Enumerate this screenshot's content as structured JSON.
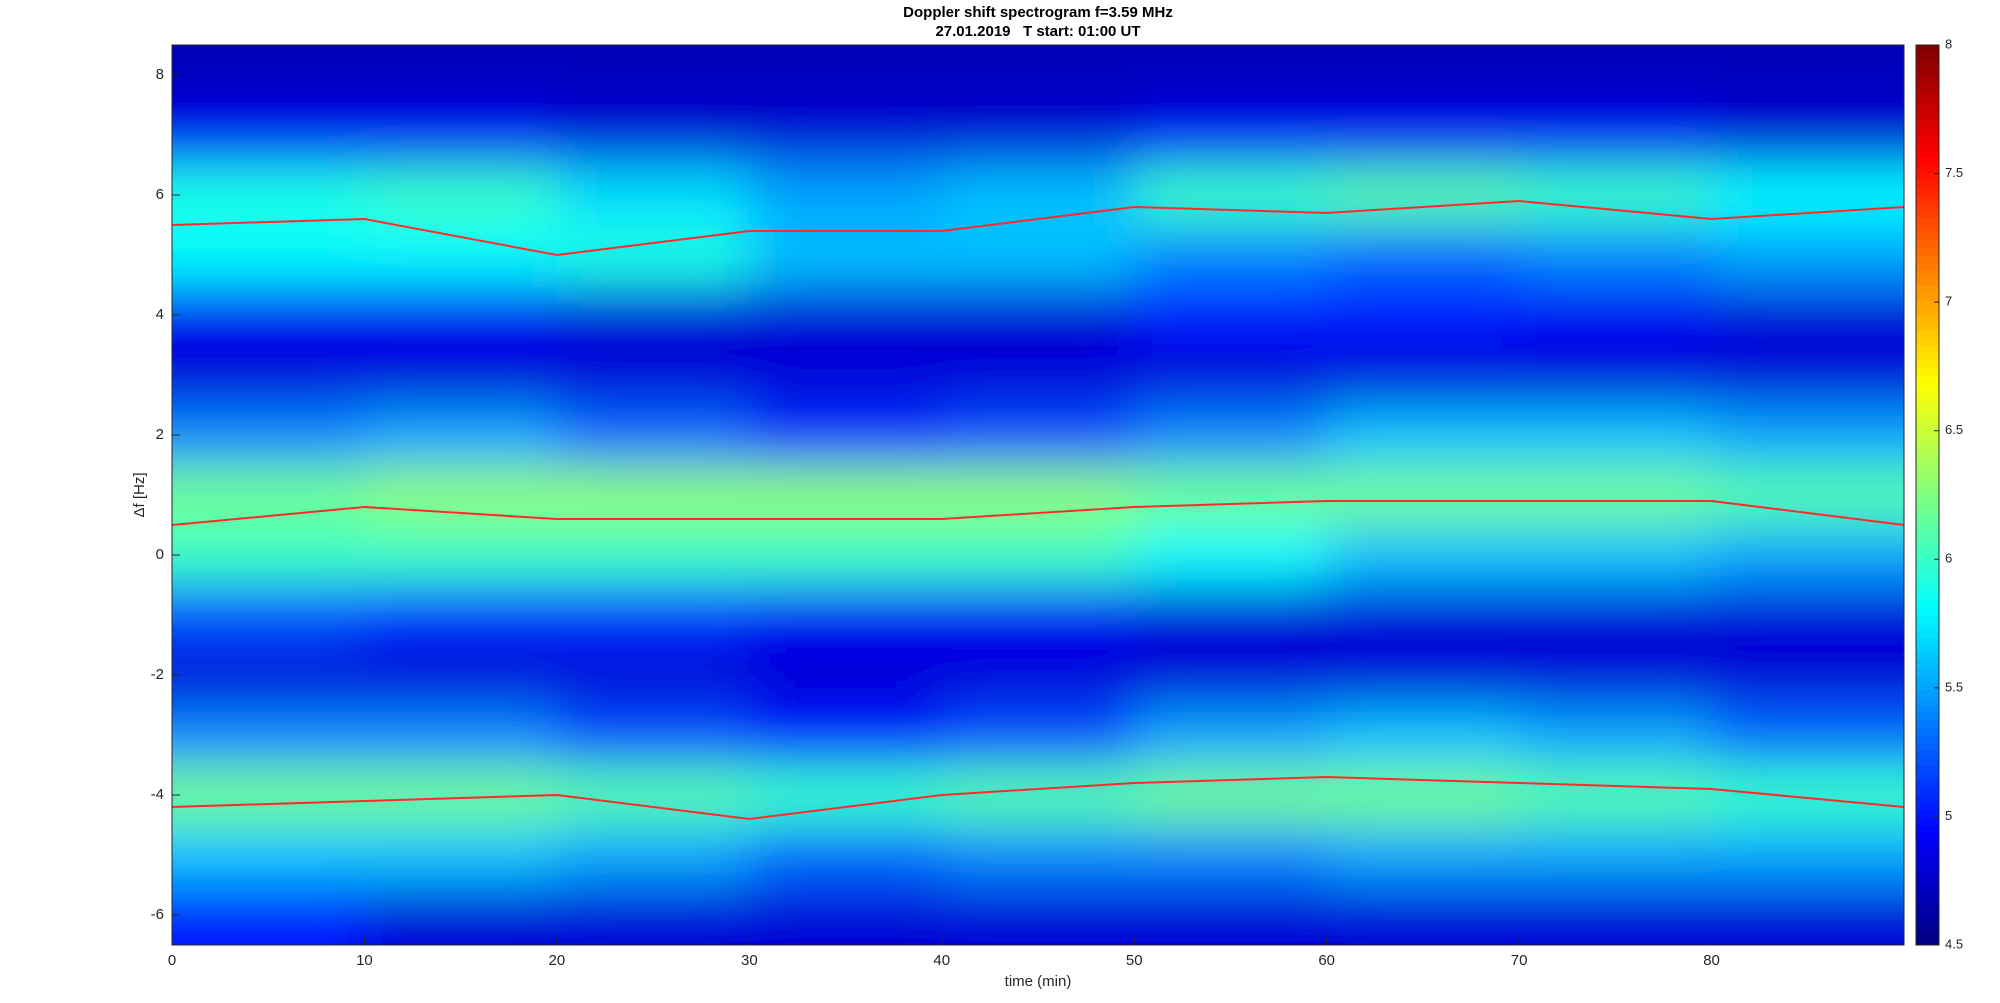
{
  "chart_data": {
    "type": "spectrogram",
    "title": "Doppler shift spectrogram f=3.59 MHz",
    "subtitle": "27.01.2019   T start: 01:00 UT",
    "xlabel": "time (min)",
    "ylabel": "Δf [Hz]",
    "xlim": [
      0,
      90
    ],
    "xticks": [
      0,
      10,
      20,
      30,
      40,
      50,
      60,
      70,
      80
    ],
    "ylim": [
      -6.5,
      8.5
    ],
    "yticks": [
      -6,
      -4,
      -2,
      0,
      2,
      4,
      6,
      8
    ],
    "colormap": "jet",
    "clim": [
      4.5,
      8
    ],
    "cticks": [
      4.5,
      5,
      5.5,
      6,
      6.5,
      7,
      7.5,
      8
    ],
    "xbins": [
      0,
      10,
      20,
      30,
      40,
      50,
      60,
      70,
      80,
      90
    ],
    "ybins": [
      -6.5,
      -5.5,
      -4.5,
      -3.5,
      -2.5,
      -1.5,
      -0.5,
      0.5,
      1.5,
      2.5,
      3.5,
      4.5,
      5.5,
      6.5,
      7.5,
      8.5
    ],
    "z": [
      [
        5.0,
        4.8,
        4.8,
        4.8,
        4.8,
        4.8,
        4.8,
        4.8,
        4.8
      ],
      [
        5.6,
        5.6,
        5.5,
        5.3,
        5.4,
        5.4,
        5.5,
        5.5,
        5.5
      ],
      [
        6.2,
        6.2,
        6.1,
        6.0,
        6.1,
        6.2,
        6.2,
        6.1,
        6.0
      ],
      [
        5.4,
        5.4,
        5.2,
        5.0,
        5.2,
        5.5,
        5.6,
        5.5,
        5.3
      ],
      [
        4.8,
        4.8,
        4.8,
        4.8,
        4.8,
        4.8,
        4.8,
        4.8,
        4.8
      ],
      [
        5.2,
        5.1,
        5.1,
        4.9,
        4.9,
        4.8,
        4.8,
        4.8,
        4.8
      ],
      [
        6.0,
        6.0,
        6.0,
        6.0,
        6.0,
        5.8,
        5.6,
        5.6,
        5.5
      ],
      [
        6.2,
        6.3,
        6.3,
        6.3,
        6.3,
        6.2,
        6.2,
        6.2,
        6.1
      ],
      [
        5.4,
        5.5,
        5.3,
        5.1,
        5.2,
        5.4,
        5.6,
        5.6,
        5.5
      ],
      [
        4.8,
        4.8,
        4.8,
        4.8,
        4.8,
        4.8,
        4.8,
        4.8,
        4.8
      ],
      [
        4.9,
        4.9,
        4.8,
        4.8,
        4.8,
        5.0,
        5.0,
        4.9,
        4.8
      ],
      [
        5.8,
        5.8,
        5.9,
        5.6,
        5.6,
        5.4,
        5.3,
        5.4,
        5.5
      ],
      [
        5.9,
        6.0,
        5.7,
        5.5,
        5.6,
        6.0,
        6.1,
        6.0,
        5.8
      ],
      [
        4.9,
        4.9,
        4.8,
        4.8,
        4.8,
        4.9,
        4.9,
        4.9,
        4.8
      ],
      [
        4.7,
        4.7,
        4.7,
        4.7,
        4.7,
        4.7,
        4.7,
        4.7,
        4.7
      ]
    ],
    "x": [
      0,
      10,
      20,
      30,
      40,
      50,
      60,
      70,
      80,
      90
    ],
    "lines": [
      {
        "color": "#ff2a2a",
        "values": [
          5.5,
          5.6,
          5.0,
          5.4,
          5.4,
          5.8,
          5.7,
          5.9,
          5.6,
          5.8
        ]
      },
      {
        "color": "#ff2a2a",
        "values": [
          0.5,
          0.8,
          0.6,
          0.6,
          0.6,
          0.8,
          0.9,
          0.9,
          0.9,
          0.5
        ]
      },
      {
        "color": "#ff2a2a",
        "values": [
          -4.2,
          -4.1,
          -4.0,
          -4.4,
          -4.0,
          -3.8,
          -3.7,
          -3.8,
          -3.9,
          -4.2
        ]
      }
    ]
  }
}
